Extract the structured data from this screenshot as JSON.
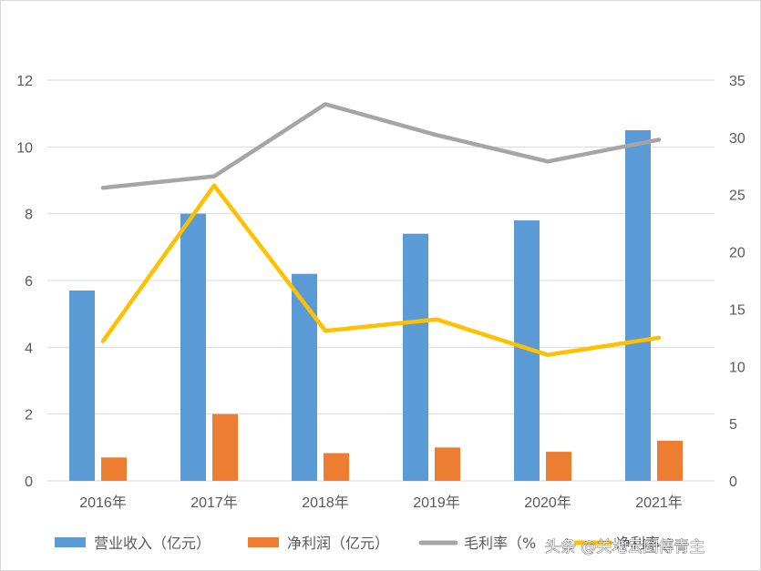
{
  "chart_data": {
    "type": "bar",
    "categories": [
      "2016年",
      "2017年",
      "2018年",
      "2019年",
      "2020年",
      "2021年"
    ],
    "series": [
      {
        "name": "营业收入（亿元）",
        "kind": "bar",
        "axis": "left",
        "color": "#5B9BD5",
        "values": [
          5.7,
          8.0,
          6.2,
          7.4,
          7.8,
          10.5
        ]
      },
      {
        "name": "净利润（亿元）",
        "kind": "bar",
        "axis": "left",
        "color": "#ED7D31",
        "values": [
          0.7,
          2.0,
          0.83,
          1.0,
          0.87,
          1.2
        ]
      },
      {
        "name": "毛利率（%",
        "kind": "line",
        "axis": "right",
        "color": "#A5A5A5",
        "values": [
          25.6,
          26.6,
          32.9,
          30.2,
          27.9,
          29.8
        ]
      },
      {
        "name": "净利率",
        "kind": "line",
        "axis": "right",
        "color": "#FFC000",
        "values": [
          12.2,
          25.8,
          13.1,
          14.1,
          11.0,
          12.5
        ]
      }
    ],
    "y_left": {
      "min": 0,
      "max": 12,
      "step": 2,
      "ticks": [
        "0",
        "2",
        "4",
        "6",
        "8",
        "10",
        "12"
      ]
    },
    "y_right": {
      "min": 0,
      "max": 35,
      "step": 5,
      "ticks": [
        "0",
        "5",
        "10",
        "15",
        "20",
        "25",
        "30",
        "35"
      ]
    },
    "grid": true,
    "legend_position": "bottom"
  },
  "legend": {
    "items": [
      "营业收入（亿元）",
      "净利润（亿元）",
      "毛利率（%",
      "净利率"
    ]
  },
  "watermark": "头条 @关地云图傅青主"
}
